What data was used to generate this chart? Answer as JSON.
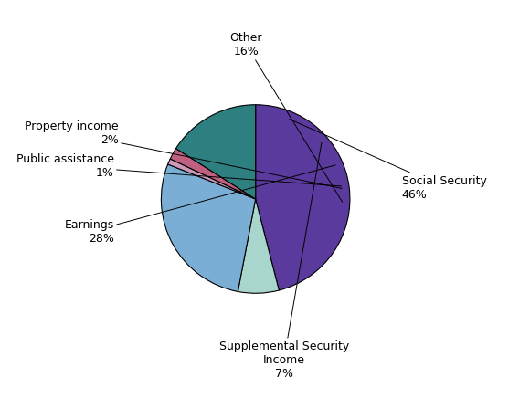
{
  "slices": [
    {
      "label": "Social Security\n46%",
      "value": 46,
      "color": "#5b3a9e"
    },
    {
      "label": "Supplemental Security\nIncome\n7%",
      "value": 7,
      "color": "#a8d5cc"
    },
    {
      "label": "Earnings\n28%",
      "value": 28,
      "color": "#7baed4"
    },
    {
      "label": "Public assistance\n1%",
      "value": 1,
      "color": "#cc99bb"
    },
    {
      "label": "Property income\n2%",
      "value": 2,
      "color": "#c06080"
    },
    {
      "label": "Other\n16%",
      "value": 16,
      "color": "#2e8080"
    }
  ],
  "background_color": "#ffffff",
  "font_size": 9,
  "start_angle": 90,
  "counterclock": false
}
